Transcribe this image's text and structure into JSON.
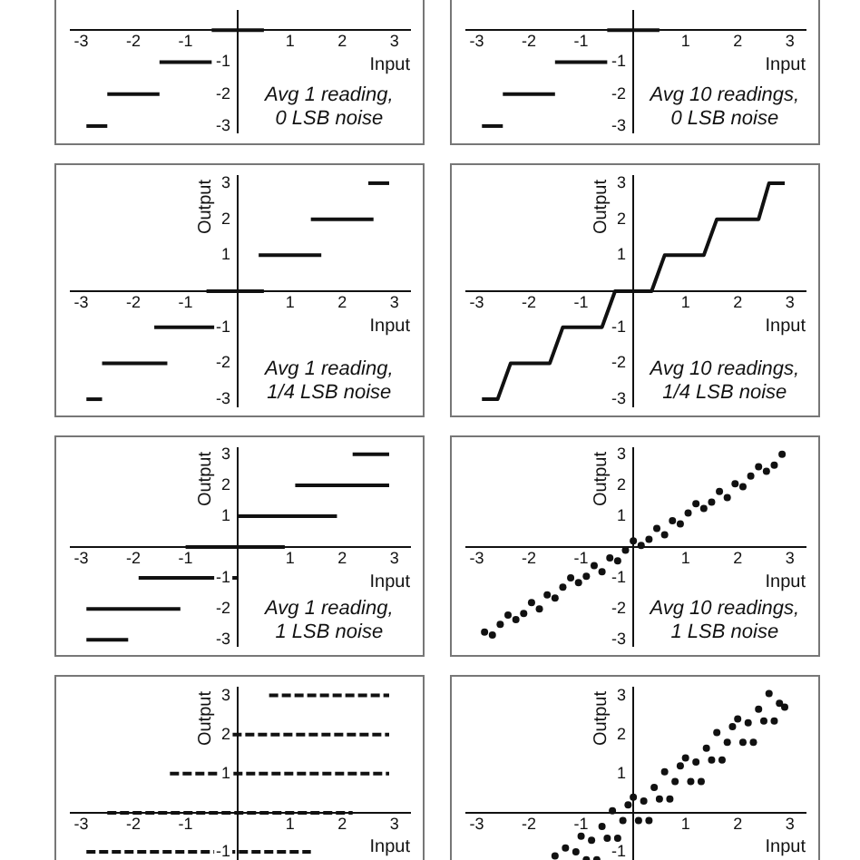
{
  "chart_data": [
    {
      "type": "line",
      "xlim": [
        -3.2,
        3.3
      ],
      "ylim": [
        -3.2,
        0.6
      ],
      "xticks": [
        -3,
        -2,
        -1,
        1,
        2,
        3
      ],
      "yticks": [
        -3,
        -2,
        -1
      ],
      "xlabel": "Input",
      "annotations": [
        "Avg 1 reading,",
        "0 LSB noise"
      ],
      "series": [
        {
          "color": "#111111",
          "x": [
            -2.9,
            -2.5
          ],
          "values": [
            -3,
            -3
          ]
        },
        {
          "color": "#111111",
          "x": [
            -2.5,
            -1.5
          ],
          "values": [
            -2,
            -2
          ]
        },
        {
          "color": "#111111",
          "x": [
            -1.5,
            -0.5
          ],
          "values": [
            -1,
            -1
          ]
        },
        {
          "color": "#111111",
          "x": [
            -0.5,
            0.5
          ],
          "values": [
            0,
            0
          ]
        }
      ]
    },
    {
      "type": "line",
      "xlim": [
        -3.2,
        3.3
      ],
      "ylim": [
        -3.2,
        0.6
      ],
      "xticks": [
        -3,
        -2,
        -1,
        1,
        2,
        3
      ],
      "yticks": [
        -3,
        -2,
        -1
      ],
      "xlabel": "Input",
      "annotations": [
        "Avg 10 readings,",
        "0 LSB noise"
      ],
      "series": [
        {
          "color": "#111111",
          "x": [
            -2.9,
            -2.5
          ],
          "values": [
            -3,
            -3
          ]
        },
        {
          "color": "#111111",
          "x": [
            -2.5,
            -1.5
          ],
          "values": [
            -2,
            -2
          ]
        },
        {
          "color": "#111111",
          "x": [
            -1.5,
            -0.5
          ],
          "values": [
            -1,
            -1
          ]
        },
        {
          "color": "#111111",
          "x": [
            -0.5,
            0.5
          ],
          "values": [
            0,
            0
          ]
        }
      ]
    },
    {
      "type": "line",
      "xlim": [
        -3.2,
        3.3
      ],
      "ylim": [
        -3.2,
        3.2
      ],
      "xticks": [
        -3,
        -2,
        -1,
        1,
        2,
        3
      ],
      "yticks": [
        -3,
        -2,
        -1,
        1,
        2,
        3
      ],
      "xlabel": "Input",
      "ylabel": "Output",
      "annotations": [
        "Avg 1 reading,",
        "1/4 LSB noise"
      ],
      "series": [
        {
          "color": "#111111",
          "x": [
            -2.9,
            -2.6
          ],
          "values": [
            -3,
            -3
          ]
        },
        {
          "color": "#111111",
          "x": [
            -2.6,
            -1.35
          ],
          "values": [
            -2,
            -2
          ]
        },
        {
          "color": "#111111",
          "x": [
            -1.6,
            -0.4
          ],
          "values": [
            -1,
            -1
          ]
        },
        {
          "color": "#111111",
          "x": [
            -0.6,
            0.5
          ],
          "values": [
            0,
            0
          ]
        },
        {
          "color": "#111111",
          "x": [
            0.4,
            1.6
          ],
          "values": [
            1,
            1
          ]
        },
        {
          "color": "#111111",
          "x": [
            1.4,
            2.6
          ],
          "values": [
            2,
            2
          ]
        },
        {
          "color": "#111111",
          "x": [
            2.5,
            2.9
          ],
          "values": [
            3,
            3
          ]
        }
      ]
    },
    {
      "type": "line",
      "xlim": [
        -3.2,
        3.3
      ],
      "ylim": [
        -3.2,
        3.2
      ],
      "xticks": [
        -3,
        -2,
        -1,
        1,
        2,
        3
      ],
      "yticks": [
        -3,
        -2,
        -1,
        1,
        2,
        3
      ],
      "xlabel": "Input",
      "ylabel": "Output",
      "annotations": [
        "Avg 10 readings,",
        "1/4 LSB noise"
      ],
      "series": [
        {
          "color": "#111111",
          "x": [
            -2.9,
            -2.6,
            -2.35,
            -1.6,
            -1.35,
            -0.6,
            -0.35,
            0.35,
            0.6,
            1.35,
            1.6,
            2.4,
            2.6,
            2.9
          ],
          "values": [
            -3,
            -3,
            -2,
            -2,
            -1,
            -1,
            0,
            0,
            1,
            1,
            2,
            2,
            3,
            3
          ]
        }
      ]
    },
    {
      "type": "line",
      "xlim": [
        -3.2,
        3.3
      ],
      "ylim": [
        -3.2,
        3.2
      ],
      "xticks": [
        -3,
        -2,
        -1,
        1,
        2,
        3
      ],
      "yticks": [
        -3,
        -2,
        -1,
        1,
        2,
        3
      ],
      "xlabel": "Input",
      "ylabel": "Output",
      "annotations": [
        "Avg 1 reading,",
        "1 LSB noise"
      ],
      "series": [
        {
          "color": "#111111",
          "x": [
            -2.9,
            -2.1
          ],
          "values": [
            -3,
            -3
          ]
        },
        {
          "color": "#111111",
          "x": [
            -2.9,
            -1.1
          ],
          "values": [
            -2,
            -2
          ]
        },
        {
          "color": "#111111",
          "x": [
            -1.9,
            0
          ],
          "values": [
            -1,
            -1
          ]
        },
        {
          "color": "#111111",
          "x": [
            -1,
            0.9
          ],
          "values": [
            0,
            0
          ]
        },
        {
          "color": "#111111",
          "x": [
            0,
            1.9
          ],
          "values": [
            1,
            1
          ]
        },
        {
          "color": "#111111",
          "x": [
            1.1,
            2.9
          ],
          "values": [
            2,
            2
          ]
        },
        {
          "color": "#111111",
          "x": [
            2.2,
            2.9
          ],
          "values": [
            3,
            3
          ]
        }
      ]
    },
    {
      "type": "scatter",
      "marker": "circle",
      "xlim": [
        -3.2,
        3.3
      ],
      "ylim": [
        -3.2,
        3.2
      ],
      "xticks": [
        -3,
        -2,
        -1,
        1,
        2,
        3
      ],
      "yticks": [
        -3,
        -2,
        -1,
        1,
        2,
        3
      ],
      "xlabel": "Input",
      "ylabel": "Output",
      "annotations": [
        "Avg 10 readings,",
        "1 LSB noise"
      ],
      "series": [
        {
          "color": "#111111",
          "x": [
            -2.85,
            -2.7,
            -2.55,
            -2.4,
            -2.25,
            -2.1,
            -1.95,
            -1.8,
            -1.65,
            -1.5,
            -1.35,
            -1.2,
            -1.05,
            -0.9,
            -0.75,
            -0.6,
            -0.45,
            -0.3,
            -0.15,
            0,
            0.15,
            0.3,
            0.45,
            0.6,
            0.75,
            0.9,
            1.05,
            1.2,
            1.35,
            1.5,
            1.65,
            1.8,
            1.95,
            2.1,
            2.25,
            2.4,
            2.55,
            2.7,
            2.85
          ],
          "values": [
            -2.75,
            -2.85,
            -2.5,
            -2.2,
            -2.35,
            -2.15,
            -1.8,
            -2.0,
            -1.55,
            -1.65,
            -1.3,
            -1.0,
            -1.15,
            -0.95,
            -0.6,
            -0.8,
            -0.35,
            -0.45,
            -0.1,
            0.2,
            0.05,
            0.25,
            0.6,
            0.4,
            0.85,
            0.75,
            1.1,
            1.4,
            1.25,
            1.45,
            1.8,
            1.6,
            2.05,
            1.95,
            2.3,
            2.6,
            2.45,
            2.65,
            3.0
          ]
        }
      ]
    },
    {
      "type": "line",
      "line_style": "dashed",
      "xlim": [
        -3.2,
        3.3
      ],
      "ylim": [
        -1.3,
        3.2
      ],
      "xticks": [
        -3,
        -2,
        -1,
        1,
        2,
        3
      ],
      "yticks": [
        -1,
        1,
        2,
        3
      ],
      "xlabel": "Input",
      "ylabel": "Output",
      "series": [
        {
          "color": "#111111",
          "x": [
            0.6,
            2.9
          ],
          "values": [
            3,
            3
          ]
        },
        {
          "color": "#111111",
          "x": [
            -0.1,
            2.9
          ],
          "values": [
            2,
            2
          ]
        },
        {
          "color": "#111111",
          "x": [
            -1.3,
            2.9
          ],
          "values": [
            1,
            1
          ]
        },
        {
          "color": "#111111",
          "x": [
            -2.5,
            2.2
          ],
          "values": [
            0,
            0
          ]
        },
        {
          "color": "#111111",
          "x": [
            -2.9,
            1.4
          ],
          "values": [
            -1,
            -1
          ]
        }
      ]
    },
    {
      "type": "scatter",
      "marker": "circle",
      "xlim": [
        -3.2,
        3.3
      ],
      "ylim": [
        -1.3,
        3.2
      ],
      "xticks": [
        -3,
        -2,
        -1,
        1,
        2,
        3
      ],
      "yticks": [
        -1,
        1,
        2,
        3
      ],
      "xlabel": "Input",
      "ylabel": "Output",
      "series": [
        {
          "color": "#111111",
          "x": [
            -1.5,
            -1.3,
            -1.1,
            -1.0,
            -0.9,
            -0.8,
            -0.7,
            -0.6,
            -0.5,
            -0.4,
            -0.3,
            -0.2,
            -0.1,
            0,
            0.1,
            0.2,
            0.3,
            0.4,
            0.5,
            0.6,
            0.7,
            0.8,
            0.9,
            1.0,
            1.1,
            1.2,
            1.3,
            1.4,
            1.5,
            1.6,
            1.7,
            1.8,
            1.9,
            2.0,
            2.1,
            2.2,
            2.3,
            2.4,
            2.5,
            2.6,
            2.7,
            2.8,
            2.9
          ],
          "values": [
            -1.1,
            -0.9,
            -1.0,
            -0.6,
            -1.2,
            -0.7,
            -1.2,
            -0.35,
            -0.65,
            0.05,
            -0.65,
            -0.2,
            0.2,
            0.4,
            -0.2,
            0.3,
            -0.2,
            0.65,
            0.35,
            1.05,
            0.35,
            0.8,
            1.2,
            1.4,
            0.8,
            1.3,
            0.8,
            1.65,
            1.35,
            2.05,
            1.35,
            1.8,
            2.2,
            2.4,
            1.8,
            2.3,
            1.8,
            2.65,
            2.35,
            3.05,
            2.35,
            2.8,
            2.7
          ]
        }
      ]
    }
  ]
}
